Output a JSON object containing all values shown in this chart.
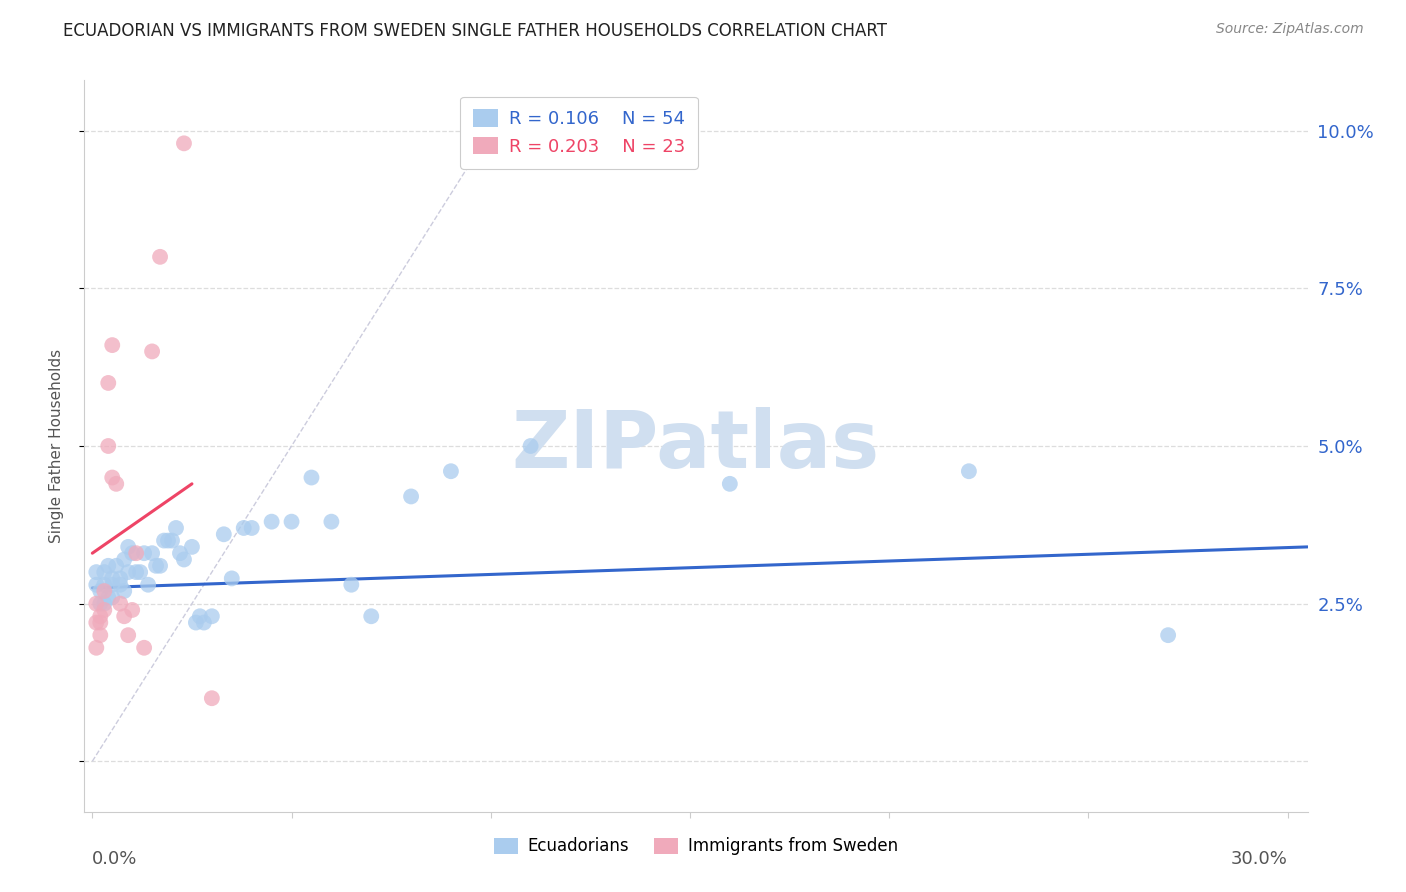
{
  "title": "ECUADORIAN VS IMMIGRANTS FROM SWEDEN SINGLE FATHER HOUSEHOLDS CORRELATION CHART",
  "source": "Source: ZipAtlas.com",
  "ylabel": "Single Father Households",
  "yticks": [
    0.0,
    0.025,
    0.05,
    0.075,
    0.1
  ],
  "ytick_labels": [
    "",
    "2.5%",
    "5.0%",
    "7.5%",
    "10.0%"
  ],
  "xticks": [
    0.0,
    0.05,
    0.1,
    0.15,
    0.2,
    0.25,
    0.3
  ],
  "xlim": [
    -0.002,
    0.305
  ],
  "ylim": [
    -0.008,
    0.108
  ],
  "background_color": "#ffffff",
  "grid_color": "#dddddd",
  "blue_color": "#aaccee",
  "pink_color": "#f0aabb",
  "blue_line_color": "#3366cc",
  "pink_line_color": "#ee4466",
  "diag_color": "#ccccdd",
  "watermark_text": "ZIPatlas",
  "watermark_color": "#d0dff0",
  "legend_R_blue": "0.106",
  "legend_N_blue": "54",
  "legend_R_pink": "0.203",
  "legend_N_pink": "23",
  "legend_color_blue": "#3366cc",
  "legend_color_pink": "#ee4466",
  "blue_label": "Ecuadorians",
  "pink_label": "Immigrants from Sweden",
  "blue_scatter_x": [
    0.001,
    0.001,
    0.002,
    0.002,
    0.003,
    0.003,
    0.003,
    0.004,
    0.004,
    0.005,
    0.005,
    0.005,
    0.006,
    0.007,
    0.007,
    0.008,
    0.008,
    0.009,
    0.009,
    0.01,
    0.011,
    0.012,
    0.013,
    0.014,
    0.015,
    0.016,
    0.017,
    0.018,
    0.019,
    0.02,
    0.021,
    0.022,
    0.023,
    0.025,
    0.026,
    0.027,
    0.028,
    0.03,
    0.033,
    0.035,
    0.038,
    0.04,
    0.045,
    0.05,
    0.055,
    0.06,
    0.065,
    0.07,
    0.08,
    0.09,
    0.11,
    0.16,
    0.22,
    0.27
  ],
  "blue_scatter_y": [
    0.028,
    0.03,
    0.025,
    0.027,
    0.025,
    0.028,
    0.03,
    0.026,
    0.031,
    0.028,
    0.029,
    0.026,
    0.031,
    0.029,
    0.028,
    0.032,
    0.027,
    0.03,
    0.034,
    0.033,
    0.03,
    0.03,
    0.033,
    0.028,
    0.033,
    0.031,
    0.031,
    0.035,
    0.035,
    0.035,
    0.037,
    0.033,
    0.032,
    0.034,
    0.022,
    0.023,
    0.022,
    0.023,
    0.036,
    0.029,
    0.037,
    0.037,
    0.038,
    0.038,
    0.045,
    0.038,
    0.028,
    0.023,
    0.042,
    0.046,
    0.05,
    0.044,
    0.046,
    0.02
  ],
  "pink_scatter_x": [
    0.001,
    0.001,
    0.001,
    0.002,
    0.002,
    0.002,
    0.003,
    0.003,
    0.004,
    0.004,
    0.005,
    0.005,
    0.006,
    0.007,
    0.008,
    0.009,
    0.01,
    0.011,
    0.013,
    0.015,
    0.017,
    0.023,
    0.03
  ],
  "pink_scatter_y": [
    0.025,
    0.022,
    0.018,
    0.023,
    0.022,
    0.02,
    0.027,
    0.024,
    0.05,
    0.06,
    0.066,
    0.045,
    0.044,
    0.025,
    0.023,
    0.02,
    0.024,
    0.033,
    0.018,
    0.065,
    0.08,
    0.098,
    0.01
  ],
  "blue_line_x": [
    0.0,
    0.305
  ],
  "blue_line_y": [
    0.0275,
    0.034
  ],
  "pink_line_x": [
    0.0,
    0.025
  ],
  "pink_line_y": [
    0.033,
    0.044
  ],
  "diag_line_x": [
    0.0,
    0.105
  ],
  "diag_line_y": [
    0.0,
    0.105
  ],
  "title_fontsize": 12,
  "source_fontsize": 10,
  "ylabel_fontsize": 11,
  "tick_label_fontsize": 13,
  "legend_fontsize": 13
}
